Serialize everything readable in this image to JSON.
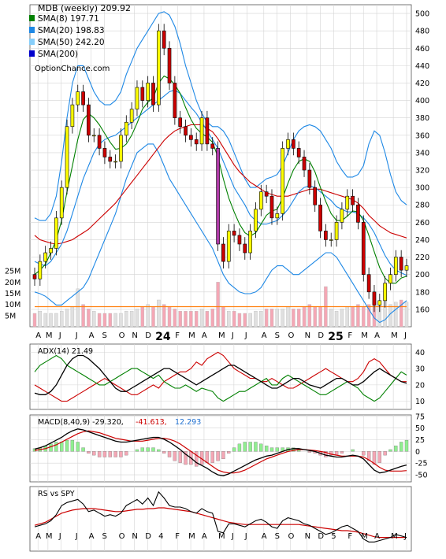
{
  "chart_data": {
    "type": "candlestick",
    "ticker_label": "MDB (weekly) 209.92",
    "source_label": "OptionChance.com",
    "colors": {
      "grid": "#d4d4d4",
      "up_candle": "#ffff00",
      "down_candle": "#cc0000",
      "purple_candle": "#b03aa8",
      "sma8": "#008000",
      "sma20": "#1e88e5",
      "sma50": "#e8e800",
      "sma200": "#0000cc",
      "bollinger": "#1e88e5",
      "sma50_line": "#cc0000",
      "volume_up": "#e0e0e0",
      "volume_down": "#f4a7b5",
      "volume_avg": "#ff7f0e",
      "adx": "#000000",
      "plus_di": "#008000",
      "minus_di": "#cc0000",
      "macd": "#000000",
      "signal": "#cc0000",
      "hist_pos": "#90ee90",
      "hist_neg": "#f4a7b5"
    },
    "price_panel": {
      "legend": [
        {
          "label": "SMA(8) 197.71",
          "color": "#008000"
        },
        {
          "label": "SMA(20) 198.83",
          "color": "#1e88e5"
        },
        {
          "label": "SMA(50) 242.20",
          "color": "#87cefa"
        },
        {
          "label": "SMA(200)",
          "color": "#0000cc"
        }
      ],
      "ylim": [
        140,
        510
      ],
      "yticks": [
        160,
        180,
        200,
        220,
        240,
        260,
        280,
        300,
        320,
        340,
        360,
        380,
        400,
        420,
        440,
        460,
        480,
        500
      ],
      "close": [
        195,
        215,
        225,
        230,
        265,
        300,
        370,
        395,
        410,
        395,
        360,
        360,
        345,
        335,
        330,
        330,
        360,
        375,
        390,
        415,
        400,
        420,
        395,
        480,
        460,
        420,
        380,
        370,
        360,
        355,
        350,
        380,
        350,
        345,
        235,
        215,
        250,
        245,
        235,
        225,
        250,
        275,
        295,
        290,
        265,
        270,
        345,
        355,
        345,
        335,
        320,
        300,
        280,
        250,
        240,
        240,
        260,
        275,
        290,
        280,
        260,
        200,
        180,
        165,
        170,
        190,
        200,
        220,
        205,
        210
      ],
      "open": [
        200,
        195,
        215,
        225,
        230,
        265,
        300,
        370,
        395,
        410,
        395,
        360,
        360,
        345,
        335,
        330,
        330,
        360,
        375,
        390,
        415,
        400,
        420,
        395,
        480,
        460,
        420,
        380,
        370,
        360,
        355,
        350,
        380,
        350,
        345,
        235,
        215,
        250,
        245,
        235,
        225,
        250,
        275,
        295,
        290,
        265,
        270,
        345,
        355,
        345,
        335,
        320,
        300,
        280,
        250,
        240,
        240,
        260,
        275,
        290,
        280,
        260,
        200,
        180,
        165,
        170,
        190,
        200,
        220,
        205
      ],
      "sma8": [
        200,
        205,
        212,
        225,
        240,
        262,
        295,
        325,
        355,
        378,
        385,
        380,
        372,
        362,
        352,
        344,
        345,
        350,
        360,
        374,
        390,
        398,
        403,
        420,
        428,
        425,
        418,
        408,
        392,
        378,
        368,
        362,
        358,
        352,
        335,
        310,
        288,
        272,
        258,
        248,
        244,
        248,
        258,
        268,
        273,
        275,
        288,
        305,
        320,
        330,
        333,
        330,
        318,
        300,
        284,
        270,
        262,
        262,
        267,
        273,
        272,
        262,
        245,
        226,
        208,
        196,
        190,
        190,
        196,
        198
      ],
      "sma20": [
        215,
        212,
        210,
        215,
        225,
        235,
        250,
        270,
        290,
        310,
        325,
        340,
        350,
        355,
        358,
        360,
        365,
        370,
        375,
        380,
        385,
        390,
        395,
        400,
        405,
        410,
        412,
        408,
        400,
        392,
        385,
        375,
        365,
        355,
        345,
        330,
        315,
        300,
        290,
        280,
        268,
        262,
        258,
        258,
        260,
        262,
        268,
        275,
        285,
        295,
        300,
        302,
        300,
        295,
        290,
        285,
        278,
        275,
        272,
        272,
        270,
        265,
        258,
        248,
        235,
        222,
        212,
        205,
        202,
        199
      ],
      "sma50": [
        245,
        240,
        238,
        236,
        235,
        236,
        238,
        240,
        244,
        248,
        252,
        258,
        264,
        270,
        276,
        282,
        290,
        298,
        306,
        314,
        322,
        330,
        338,
        346,
        354,
        360,
        365,
        368,
        370,
        372,
        372,
        372,
        368,
        364,
        356,
        346,
        336,
        326,
        318,
        312,
        306,
        302,
        298,
        294,
        292,
        290,
        290,
        290,
        292,
        294,
        296,
        298,
        298,
        298,
        296,
        294,
        292,
        290,
        288,
        286,
        282,
        276,
        268,
        262,
        256,
        252,
        248,
        246,
        244,
        242
      ],
      "bb_upper": [
        265,
        262,
        262,
        270,
        290,
        330,
        380,
        420,
        440,
        440,
        425,
        410,
        400,
        395,
        395,
        400,
        410,
        430,
        445,
        460,
        470,
        480,
        490,
        500,
        502,
        498,
        485,
        465,
        440,
        420,
        400,
        385,
        375,
        370,
        370,
        365,
        355,
        340,
        325,
        310,
        300,
        300,
        305,
        310,
        312,
        315,
        325,
        340,
        355,
        365,
        370,
        372,
        370,
        365,
        355,
        345,
        330,
        320,
        312,
        312,
        315,
        325,
        350,
        365,
        360,
        340,
        315,
        295,
        285,
        280
      ],
      "bb_lower": [
        180,
        178,
        175,
        170,
        165,
        165,
        170,
        175,
        180,
        185,
        195,
        210,
        225,
        240,
        255,
        270,
        290,
        310,
        325,
        340,
        345,
        350,
        350,
        340,
        325,
        310,
        300,
        290,
        280,
        270,
        260,
        250,
        240,
        230,
        215,
        200,
        190,
        185,
        180,
        178,
        178,
        180,
        185,
        195,
        205,
        210,
        210,
        205,
        200,
        200,
        205,
        210,
        215,
        220,
        225,
        225,
        220,
        210,
        200,
        190,
        180,
        170,
        160,
        150,
        145,
        148,
        155,
        160,
        165,
        170
      ],
      "volume": [
        6,
        7,
        6,
        6,
        6,
        7,
        8,
        9,
        17,
        10,
        8,
        7,
        6,
        6,
        6,
        6,
        6,
        7,
        7,
        8,
        9,
        10,
        9,
        12,
        10,
        9,
        8,
        7,
        7,
        7,
        7,
        8,
        7,
        8,
        20,
        9,
        7,
        7,
        6,
        6,
        6,
        7,
        7,
        8,
        8,
        8,
        8,
        9,
        8,
        8,
        9,
        10,
        9,
        9,
        18,
        8,
        7,
        8,
        9,
        9,
        10,
        9,
        10,
        11,
        11,
        12,
        10,
        11,
        12,
        11
      ],
      "volume_avg": [
        9,
        9,
        9,
        9,
        9,
        9,
        9,
        9,
        9,
        9,
        9,
        9,
        9,
        9,
        9,
        9,
        9,
        9,
        9,
        9,
        9,
        9,
        9,
        9,
        9,
        9,
        9,
        9,
        9,
        9,
        9,
        9,
        9,
        9,
        9,
        9,
        9,
        9,
        9,
        9,
        9,
        9,
        9,
        9,
        9,
        9,
        9,
        9,
        9,
        9,
        9,
        9,
        9,
        9,
        9,
        9,
        9,
        9,
        9,
        9,
        9,
        9,
        9,
        9,
        9,
        9,
        9,
        9,
        9,
        9
      ]
    },
    "volume_axis": {
      "ticks": [
        "25M",
        "20M",
        "15M",
        "10M",
        "5M"
      ],
      "tick_values": [
        25,
        20,
        15,
        10,
        5
      ],
      "ylim": [
        0,
        30
      ]
    },
    "x_axis": {
      "months": [
        "A",
        "M",
        "J",
        "J",
        "A",
        "S",
        "O",
        "N",
        "D",
        "24",
        "F",
        "M",
        "A",
        "M",
        "J",
        "J",
        "A",
        "S",
        "O",
        "N",
        "D",
        "25",
        "F",
        "M",
        "A",
        "M",
        "J"
      ],
      "month_index": [
        1,
        4,
        8,
        13,
        17,
        21,
        26,
        30,
        34,
        38,
        43,
        47,
        51,
        56,
        60,
        64,
        69,
        73,
        77,
        82,
        86,
        90,
        95,
        99,
        103,
        108,
        112
      ]
    },
    "adx_panel": {
      "label": "ADX(14) 21.49",
      "ylim": [
        5,
        45
      ],
      "yticks": [
        10,
        20,
        30,
        40
      ],
      "adx": [
        15,
        14,
        14,
        16,
        20,
        26,
        32,
        36,
        38,
        38,
        36,
        33,
        30,
        26,
        22,
        18,
        16,
        16,
        18,
        20,
        22,
        24,
        26,
        28,
        30,
        30,
        28,
        26,
        24,
        22,
        20,
        22,
        24,
        26,
        28,
        30,
        32,
        32,
        30,
        28,
        26,
        24,
        22,
        20,
        18,
        18,
        20,
        22,
        24,
        24,
        22,
        20,
        19,
        18,
        20,
        22,
        24,
        24,
        22,
        20,
        20,
        22,
        25,
        28,
        30,
        28,
        26,
        24,
        22,
        21
      ],
      "plus_di": [
        28,
        32,
        34,
        36,
        38,
        36,
        32,
        30,
        28,
        26,
        24,
        22,
        20,
        20,
        22,
        24,
        26,
        28,
        30,
        30,
        28,
        26,
        24,
        26,
        22,
        20,
        18,
        18,
        20,
        18,
        16,
        18,
        17,
        16,
        12,
        10,
        12,
        14,
        16,
        16,
        18,
        20,
        22,
        24,
        20,
        20,
        24,
        26,
        24,
        22,
        20,
        18,
        16,
        14,
        14,
        16,
        18,
        20,
        22,
        20,
        18,
        14,
        12,
        10,
        12,
        16,
        20,
        24,
        28,
        26
      ],
      "minus_di": [
        20,
        18,
        16,
        14,
        12,
        10,
        10,
        12,
        14,
        16,
        18,
        20,
        22,
        24,
        22,
        20,
        18,
        16,
        14,
        14,
        16,
        18,
        20,
        18,
        22,
        24,
        26,
        28,
        28,
        30,
        34,
        32,
        36,
        38,
        40,
        38,
        34,
        30,
        28,
        26,
        24,
        24,
        22,
        22,
        24,
        22,
        20,
        18,
        18,
        20,
        22,
        24,
        26,
        28,
        30,
        28,
        26,
        24,
        22,
        22,
        24,
        28,
        34,
        36,
        34,
        30,
        26,
        24,
        22,
        22
      ]
    },
    "macd_panel": {
      "label": "MACD(8,40,9) -29.320,",
      "value_signal": "-41.613,",
      "value_hist": "12.293",
      "ylim": [
        -65,
        78
      ],
      "yticks": [
        75,
        50,
        25,
        0,
        -25,
        -50
      ],
      "macd": [
        5,
        8,
        12,
        18,
        24,
        30,
        38,
        44,
        48,
        46,
        42,
        38,
        34,
        30,
        26,
        22,
        20,
        20,
        22,
        24,
        26,
        28,
        30,
        30,
        26,
        20,
        12,
        4,
        -6,
        -14,
        -24,
        -30,
        -36,
        -44,
        -50,
        -52,
        -48,
        -42,
        -36,
        -30,
        -24,
        -18,
        -14,
        -10,
        -8,
        -4,
        0,
        4,
        6,
        6,
        4,
        2,
        0,
        -4,
        -8,
        -10,
        -12,
        -12,
        -10,
        -8,
        -10,
        -16,
        -28,
        -40,
        -46,
        -44,
        -40,
        -36,
        -32,
        -29
      ],
      "signal": [
        2,
        4,
        6,
        10,
        14,
        20,
        26,
        32,
        38,
        42,
        44,
        42,
        40,
        36,
        32,
        28,
        26,
        24,
        22,
        22,
        22,
        24,
        26,
        28,
        28,
        26,
        22,
        16,
        8,
        0,
        -8,
        -16,
        -24,
        -32,
        -40,
        -44,
        -46,
        -46,
        -44,
        -40,
        -34,
        -28,
        -22,
        -16,
        -12,
        -8,
        -4,
        0,
        2,
        4,
        4,
        3,
        2,
        0,
        -2,
        -6,
        -8,
        -10,
        -10,
        -10,
        -10,
        -12,
        -18,
        -26,
        -34,
        -40,
        -42,
        -42,
        -42,
        -41
      ]
    },
    "rs_panel": {
      "label": "RS vs SPY",
      "rs": [
        0.42,
        0.44,
        0.46,
        0.5,
        0.58,
        0.7,
        0.74,
        0.76,
        0.78,
        0.72,
        0.62,
        0.64,
        0.6,
        0.56,
        0.58,
        0.56,
        0.6,
        0.7,
        0.74,
        0.78,
        0.72,
        0.8,
        0.7,
        0.88,
        0.8,
        0.7,
        0.68,
        0.68,
        0.66,
        0.62,
        0.6,
        0.66,
        0.62,
        0.6,
        0.36,
        0.34,
        0.46,
        0.46,
        0.44,
        0.42,
        0.46,
        0.5,
        0.52,
        0.48,
        0.42,
        0.4,
        0.5,
        0.54,
        0.52,
        0.5,
        0.46,
        0.44,
        0.4,
        0.36,
        0.32,
        0.34,
        0.38,
        0.42,
        0.44,
        0.4,
        0.36,
        0.26,
        0.22,
        0.22,
        0.24,
        0.26,
        0.28,
        0.32,
        0.3,
        0.28
      ],
      "rs_sma": [
        0.44,
        0.46,
        0.48,
        0.52,
        0.56,
        0.6,
        0.62,
        0.64,
        0.65,
        0.66,
        0.66,
        0.66,
        0.65,
        0.64,
        0.63,
        0.62,
        0.62,
        0.63,
        0.64,
        0.65,
        0.65,
        0.66,
        0.66,
        0.67,
        0.67,
        0.66,
        0.65,
        0.64,
        0.63,
        0.62,
        0.6,
        0.58,
        0.56,
        0.54,
        0.52,
        0.5,
        0.48,
        0.47,
        0.46,
        0.45,
        0.45,
        0.45,
        0.45,
        0.45,
        0.45,
        0.45,
        0.45,
        0.45,
        0.45,
        0.45,
        0.44,
        0.43,
        0.42,
        0.41,
        0.4,
        0.39,
        0.38,
        0.37,
        0.37,
        0.36,
        0.35,
        0.33,
        0.31,
        0.29,
        0.28,
        0.28,
        0.28,
        0.28,
        0.28,
        0.28
      ]
    }
  }
}
